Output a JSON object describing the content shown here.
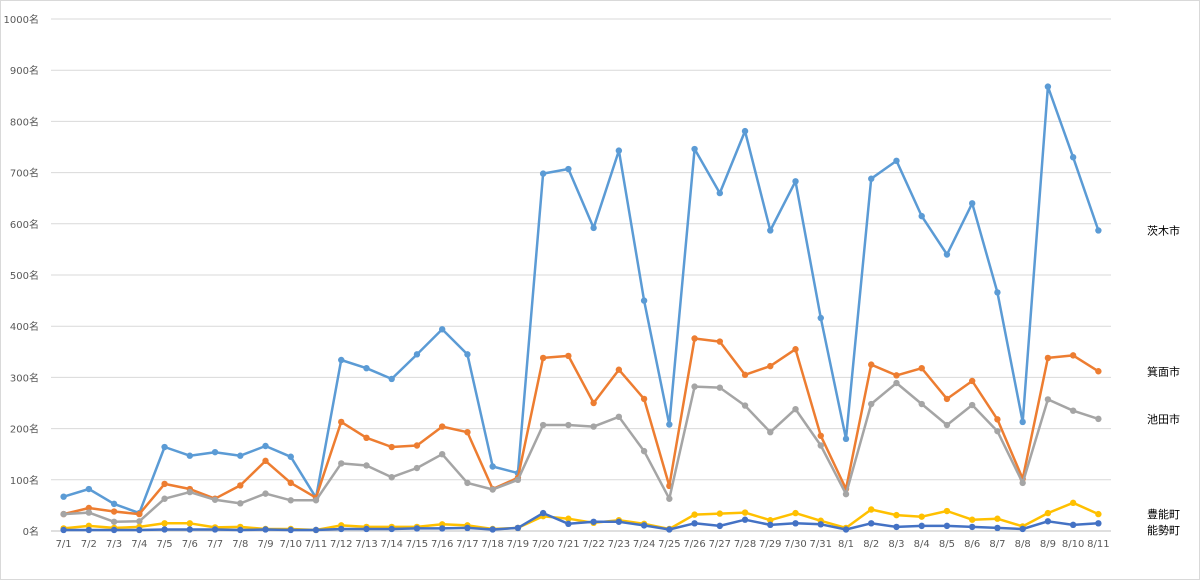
{
  "chart_data": {
    "type": "line",
    "title": "",
    "xlabel": "",
    "ylabel": "",
    "ylim": [
      0,
      1000
    ],
    "y_ticks": [
      "0名",
      "100名",
      "200名",
      "300名",
      "400名",
      "500名",
      "600名",
      "700名",
      "800名",
      "900名",
      "1000名"
    ],
    "grid": "horizontal",
    "legend": "labels at right end of lines",
    "categories": [
      "7/1",
      "7/2",
      "7/3",
      "7/4",
      "7/5",
      "7/6",
      "7/7",
      "7/8",
      "7/9",
      "7/10",
      "7/11",
      "7/12",
      "7/13",
      "7/14",
      "7/15",
      "7/16",
      "7/17",
      "7/18",
      "7/19",
      "7/20",
      "7/21",
      "7/22",
      "7/23",
      "7/24",
      "7/25",
      "7/26",
      "7/27",
      "7/28",
      "7/29",
      "7/30",
      "7/31",
      "8/1",
      "8/2",
      "8/3",
      "8/4",
      "8/5",
      "8/6",
      "8/7",
      "8/8",
      "8/9",
      "8/10",
      "8/11"
    ],
    "series": [
      {
        "name": "茨木市",
        "color": "#5b9bd5",
        "values": [
          67,
          82,
          53,
          35,
          164,
          147,
          154,
          147,
          166,
          145,
          65,
          334,
          318,
          297,
          345,
          394,
          345,
          126,
          113,
          698,
          707,
          592,
          743,
          450,
          208,
          746,
          660,
          781,
          587,
          683,
          416,
          180,
          688,
          723,
          615,
          540,
          640,
          466,
          213,
          868,
          730,
          587
        ]
      },
      {
        "name": "箕面市",
        "color": "#ed7d31",
        "values": [
          33,
          45,
          38,
          33,
          92,
          82,
          63,
          89,
          137,
          94,
          65,
          213,
          182,
          164,
          167,
          204,
          193,
          82,
          104,
          338,
          342,
          250,
          315,
          258,
          88,
          376,
          370,
          305,
          322,
          355,
          186,
          82,
          325,
          304,
          318,
          258,
          293,
          218,
          102,
          338,
          343,
          312
        ]
      },
      {
        "name": "池田市",
        "color": "#a5a5a5",
        "values": [
          33,
          36,
          18,
          19,
          63,
          76,
          61,
          54,
          73,
          60,
          60,
          132,
          128,
          105,
          123,
          150,
          94,
          81,
          100,
          207,
          207,
          204,
          223,
          156,
          63,
          282,
          280,
          245,
          193,
          238,
          167,
          72,
          248,
          289,
          248,
          207,
          246,
          195,
          94,
          257,
          235,
          219
        ]
      },
      {
        "name": "豊能町",
        "color": "#ffc000",
        "values": [
          5,
          10,
          6,
          8,
          15,
          15,
          7,
          8,
          4,
          4,
          2,
          11,
          8,
          8,
          8,
          13,
          11,
          4,
          6,
          29,
          24,
          16,
          21,
          14,
          4,
          32,
          34,
          36,
          21,
          35,
          20,
          6,
          42,
          31,
          28,
          39,
          22,
          24,
          9,
          35,
          55,
          33
        ]
      },
      {
        "name": "能勢町",
        "color": "#4472c4",
        "values": [
          2,
          2,
          2,
          2,
          3,
          3,
          3,
          2,
          3,
          2,
          2,
          4,
          4,
          4,
          5,
          5,
          6,
          3,
          6,
          35,
          14,
          18,
          18,
          11,
          3,
          15,
          10,
          22,
          12,
          15,
          13,
          3,
          15,
          8,
          10,
          10,
          8,
          6,
          4,
          19,
          12,
          15
        ]
      }
    ]
  }
}
